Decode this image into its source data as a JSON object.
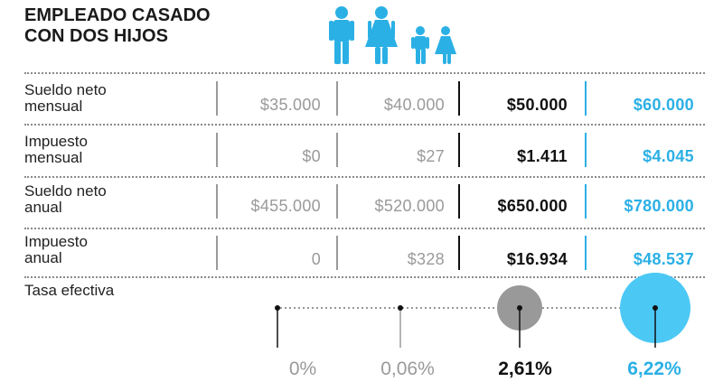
{
  "title": {
    "line1": "EMPLEADO CASADO",
    "line2": "CON DOS HIJOS"
  },
  "colors": {
    "grey": "#9a9a9a",
    "black": "#111111",
    "blue": "#2bb0e5",
    "icon_blue": "#2bb0e5",
    "bubble_grey": "#999999",
    "bubble_blue": "#4cc8f5"
  },
  "icons": {
    "family": "family-icon"
  },
  "rows": [
    {
      "label1": "Sueldo neto",
      "label2": "mensual",
      "values": [
        "$35.000",
        "$40.000",
        "$50.000",
        "$60.000"
      ]
    },
    {
      "label1": "Impuesto",
      "label2": "mensual",
      "values": [
        "$0",
        "$27",
        "$1.411",
        "$4.045"
      ]
    },
    {
      "label1": "Sueldo neto",
      "label2": "anual",
      "values": [
        "$455.000",
        "$520.000",
        "$650.000",
        "$780.000"
      ]
    },
    {
      "label1": "Impuesto",
      "label2": "anual",
      "values": [
        "0",
        "$328",
        "$16.934",
        "$48.537"
      ]
    }
  ],
  "rate": {
    "label": "Tasa efectiva",
    "values": [
      "0%",
      "0,06%",
      "2,61%",
      "6,22%"
    ],
    "numeric": [
      0,
      0.06,
      2.61,
      6.22
    ]
  }
}
